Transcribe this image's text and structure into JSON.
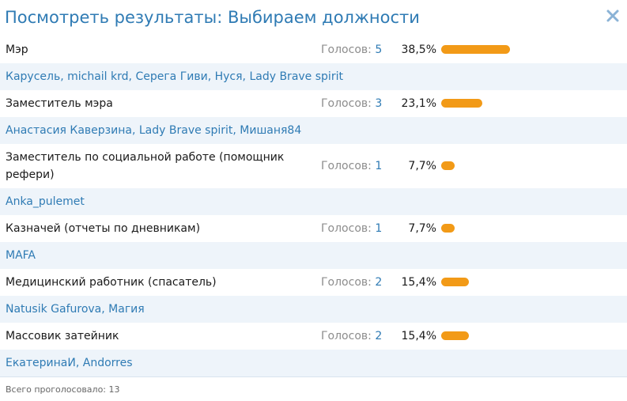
{
  "dialog": {
    "title": "Посмотреть результаты: Выбираем должности",
    "close_icon": "close-icon",
    "accent_color": "#2f7bb4",
    "bar_color": "#f29a17"
  },
  "results": [
    {
      "label": "Мэр",
      "votes_label": "Голосов:",
      "votes": "5",
      "percent": "38,5%",
      "percent_value": 38.5,
      "voters": [
        "Карусель",
        "michail krd",
        "Серега Гиви",
        "Нуся",
        "Lady Brave spirit"
      ]
    },
    {
      "label": "Заместитель мэра",
      "votes_label": "Голосов:",
      "votes": "3",
      "percent": "23,1%",
      "percent_value": 23.1,
      "voters": [
        "Анастасия Каверзина",
        "Lady Brave spirit",
        "Мишаня84"
      ]
    },
    {
      "label": "Заместитель по социальной работе (помощник рефери)",
      "votes_label": "Голосов:",
      "votes": "1",
      "percent": "7,7%",
      "percent_value": 7.7,
      "voters": [
        "Anka_pulemet"
      ]
    },
    {
      "label": "Казначей (отчеты по дневникам)",
      "votes_label": "Голосов:",
      "votes": "1",
      "percent": "7,7%",
      "percent_value": 7.7,
      "voters": [
        "MAFA"
      ]
    },
    {
      "label": "Медицинский работник (спасатель)",
      "votes_label": "Голосов:",
      "votes": "2",
      "percent": "15,4%",
      "percent_value": 15.4,
      "voters": [
        "Natusik Gafurova",
        "Магия"
      ]
    },
    {
      "label": "Массовик затейник",
      "votes_label": "Голосов:",
      "votes": "2",
      "percent": "15,4%",
      "percent_value": 15.4,
      "voters": [
        "ЕкатеринаИ",
        "Andorres"
      ]
    }
  ],
  "footer": {
    "total_label": "Всего проголосовало:",
    "total_value": "13"
  }
}
